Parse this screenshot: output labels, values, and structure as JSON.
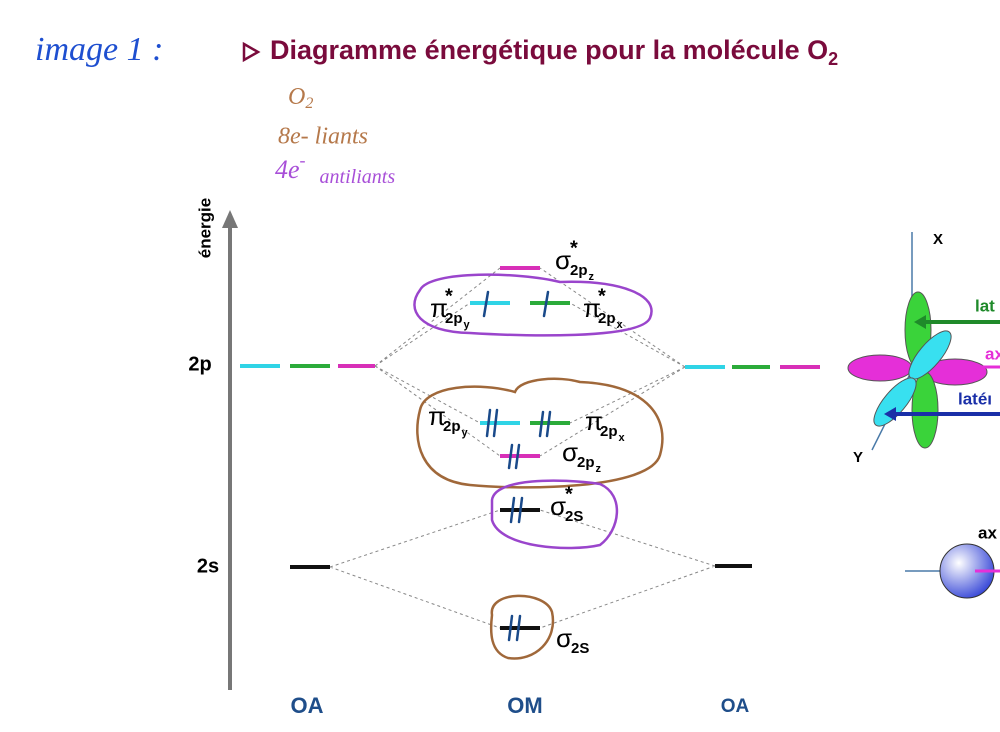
{
  "annotation": {
    "image_label": "image 1 :",
    "molecule": {
      "text": "O",
      "sub": "2"
    },
    "bonding": "8e- liants",
    "antibonding_count": "4e",
    "antibonding_charge": "-",
    "antibonding_word": "antiliants"
  },
  "title": {
    "text": "Diagramme énergétique pour la molécule O",
    "subscript": "2"
  },
  "axis": {
    "label": "énergie",
    "levels": [
      "2p",
      "2s"
    ]
  },
  "columns": [
    "OA",
    "OM",
    "OA"
  ],
  "orbitals": [
    {
      "symbol": "σ",
      "star": "*",
      "sub": "2p",
      "subsub": "z"
    },
    {
      "symbol": "π",
      "star": "*",
      "sub": "2p",
      "subsub": "y"
    },
    {
      "symbol": "π",
      "star": "*",
      "sub": "2p",
      "subsub": "x"
    },
    {
      "symbol": "π",
      "sub": "2p",
      "subsub": "y"
    },
    {
      "symbol": "π",
      "sub": "2p",
      "subsub": "x"
    },
    {
      "symbol": "σ",
      "sub": "2p",
      "subsub": "z"
    },
    {
      "symbol": "σ",
      "star": "*",
      "sub": "2S"
    },
    {
      "symbol": "σ",
      "sub": "2S"
    }
  ],
  "side_figure": {
    "axes": [
      "X",
      "Y"
    ],
    "labels": [
      "lat",
      "ax",
      "latéı",
      "ax"
    ]
  }
}
